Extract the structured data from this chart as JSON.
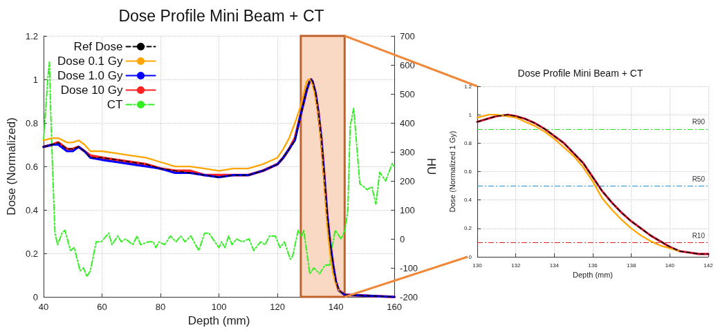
{
  "chart_data": [
    {
      "type": "line",
      "title": "Dose Profile Mini Beam + CT",
      "xlabel": "Depth (mm)",
      "ylabel": "Dose (Normalized)",
      "y2label": "HU",
      "xlim": [
        40,
        160
      ],
      "xticks": [
        40,
        60,
        80,
        100,
        120,
        140,
        160
      ],
      "ylim": [
        0,
        1.2
      ],
      "yticks": [
        0,
        0.2,
        0.4,
        0.6,
        0.8,
        1,
        1.2
      ],
      "y2lim": [
        -200,
        700
      ],
      "y2ticks": [
        -200,
        -100,
        0,
        100,
        200,
        300,
        400,
        500,
        600,
        700
      ],
      "grid": true,
      "legend": "top left",
      "marker": "none",
      "bands": [
        {
          "axis": "x",
          "from": 128,
          "to": 143,
          "color": "#f9d9c4"
        }
      ],
      "series": [
        {
          "name": "Ref Dose",
          "color": "#000000",
          "line_style": "dashed",
          "x": [
            40,
            43,
            45,
            48,
            50,
            52,
            54,
            56,
            60,
            65,
            70,
            75,
            80,
            85,
            90,
            95,
            100,
            105,
            110,
            115,
            120,
            122,
            124,
            126,
            128,
            130,
            131,
            131.5,
            132,
            133,
            134,
            135,
            136,
            137,
            138,
            139,
            140,
            141,
            142,
            143,
            160
          ],
          "values": [
            0.69,
            0.7,
            0.71,
            0.68,
            0.68,
            0.69,
            0.67,
            0.64,
            0.64,
            0.63,
            0.62,
            0.61,
            0.59,
            0.58,
            0.57,
            0.56,
            0.55,
            0.56,
            0.56,
            0.58,
            0.61,
            0.64,
            0.68,
            0.72,
            0.84,
            0.95,
            0.99,
            1.0,
            0.99,
            0.94,
            0.85,
            0.73,
            0.56,
            0.38,
            0.25,
            0.15,
            0.07,
            0.03,
            0.02,
            0.01,
            0
          ]
        },
        {
          "name": "Dose 0.1 Gy",
          "color": "#ffa500",
          "line_style": "solid",
          "x": [
            40,
            43,
            45,
            48,
            50,
            52,
            54,
            56,
            60,
            65,
            70,
            75,
            80,
            85,
            90,
            95,
            100,
            105,
            110,
            115,
            120,
            122,
            124,
            126,
            128,
            130,
            130.6,
            131,
            132,
            133,
            134,
            135,
            136,
            137,
            138,
            139,
            140,
            141,
            142
          ],
          "values": [
            0.72,
            0.73,
            0.73,
            0.71,
            0.71,
            0.72,
            0.7,
            0.67,
            0.67,
            0.66,
            0.65,
            0.64,
            0.62,
            0.6,
            0.6,
            0.59,
            0.58,
            0.59,
            0.59,
            0.61,
            0.64,
            0.68,
            0.73,
            0.8,
            0.88,
            0.99,
            1.0,
            1.0,
            0.98,
            0.92,
            0.84,
            0.71,
            0.53,
            0.33,
            0.2,
            0.11,
            0.06,
            0.03,
            0.02
          ]
        },
        {
          "name": "Dose 1.0 Gy",
          "color": "#0000ff",
          "line_style": "solid",
          "x": [
            40,
            43,
            45,
            48,
            50,
            52,
            54,
            56,
            60,
            65,
            70,
            75,
            80,
            85,
            90,
            95,
            100,
            105,
            110,
            115,
            120,
            122,
            124,
            126,
            128,
            130,
            131,
            131.5,
            132,
            133,
            134,
            135,
            136,
            137,
            138,
            139,
            140,
            141,
            142,
            143,
            160
          ],
          "values": [
            0.69,
            0.7,
            0.7,
            0.67,
            0.67,
            0.69,
            0.67,
            0.64,
            0.63,
            0.62,
            0.61,
            0.6,
            0.59,
            0.57,
            0.57,
            0.56,
            0.55,
            0.56,
            0.56,
            0.58,
            0.61,
            0.64,
            0.68,
            0.72,
            0.84,
            0.95,
            0.99,
            1.0,
            0.99,
            0.94,
            0.85,
            0.73,
            0.56,
            0.38,
            0.25,
            0.15,
            0.07,
            0.03,
            0.02,
            0.01,
            0
          ]
        },
        {
          "name": "Dose 10 Gy",
          "color": "#ff2020",
          "line_style": "solid",
          "x": [
            40,
            43,
            45,
            48,
            50,
            52,
            54,
            56,
            60,
            65,
            70,
            75,
            80,
            85,
            90,
            95,
            100,
            105,
            110,
            115,
            120,
            122,
            124,
            126,
            128,
            130,
            131,
            131.5,
            132,
            133,
            134,
            135,
            136,
            137,
            138,
            139,
            140,
            141,
            142,
            143,
            160
          ],
          "values": [
            0.69,
            0.7,
            0.71,
            0.68,
            0.68,
            0.69,
            0.67,
            0.65,
            0.64,
            0.63,
            0.62,
            0.61,
            0.59,
            0.58,
            0.58,
            0.56,
            0.56,
            0.56,
            0.56,
            0.58,
            0.61,
            0.64,
            0.68,
            0.73,
            0.84,
            0.95,
            0.99,
            1.0,
            0.99,
            0.94,
            0.85,
            0.73,
            0.56,
            0.38,
            0.25,
            0.15,
            0.07,
            0.03,
            0.02,
            0.01,
            0
          ]
        },
        {
          "name": "CT",
          "color": "#33ee22",
          "line_style": "dashdot",
          "axis": "y2",
          "x": [
            40,
            41.5,
            42,
            42.5,
            43.1,
            43.9,
            44.8,
            46.3,
            47.3,
            49.2,
            50.5,
            52.5,
            53.7,
            54.8,
            56,
            58,
            59.7,
            62.3,
            63.4,
            65.4,
            66.6,
            68.1,
            70.5,
            72,
            73.2,
            75.9,
            77.5,
            78.4,
            79.5,
            81.4,
            83.4,
            85.3,
            86.9,
            88.4,
            90.4,
            93.1,
            95.1,
            96.6,
            98.6,
            100,
            100.9,
            102.1,
            103.3,
            104.5,
            106,
            108,
            110.3,
            111.9,
            114.2,
            115.8,
            117.3,
            119.3,
            120.9,
            122.4,
            124.4,
            125.2,
            127.1,
            128.3,
            129,
            131.1,
            132.5,
            134.4,
            136.3,
            137.9,
            138.3,
            139.8,
            141.8,
            143.1,
            144.1,
            144.9,
            146.1,
            148.2,
            149.6,
            150.7,
            152.3,
            153.7,
            155,
            157,
            159.3,
            160
          ],
          "values": [
            340,
            560,
            610,
            420,
            240,
            20,
            -20,
            20,
            30,
            -40,
            -30,
            -110,
            -100,
            -130,
            -110,
            -10,
            -10,
            20,
            -20,
            10,
            -10,
            0,
            -20,
            10,
            -20,
            -10,
            -10,
            -30,
            -10,
            -20,
            10,
            -10,
            10,
            -10,
            10,
            -40,
            20,
            20,
            -10,
            -30,
            -10,
            -30,
            10,
            -20,
            0,
            -10,
            0,
            -40,
            -10,
            -20,
            10,
            10,
            -30,
            -10,
            -70,
            -60,
            30,
            10,
            30,
            -120,
            -100,
            -120,
            -90,
            -90,
            -50,
            30,
            0,
            30,
            100,
            390,
            450,
            190,
            180,
            170,
            180,
            120,
            230,
            200,
            260,
            250
          ]
        }
      ]
    },
    {
      "type": "line",
      "title": "Dose Profile Mini Beam + CT",
      "xlabel": "Depth (mm)",
      "ylabel": "Dose (Normalized 1 Gy)",
      "xlim": [
        130,
        142
      ],
      "xticks": [
        130,
        132,
        134,
        136,
        138,
        140,
        142
      ],
      "ylim": [
        0,
        1.2
      ],
      "yticks": [
        0,
        0.2,
        0.4,
        0.6,
        0.8,
        1,
        1.2
      ],
      "grid": true,
      "legend": false,
      "marker": "none",
      "ref_lines": [
        {
          "axis": "y",
          "value": 0.9,
          "label": "R90",
          "color": "#22dd22",
          "line_style": "dashdot"
        },
        {
          "axis": "y",
          "value": 0.5,
          "label": "R50",
          "color": "#1f8fc8",
          "line_style": "dashdot"
        },
        {
          "axis": "y",
          "value": 0.1,
          "label": "R10",
          "color": "#d22020",
          "line_style": "dashdot"
        }
      ],
      "series": [
        {
          "color": "#000000",
          "line_style": "dashed",
          "x": [
            130,
            130.5,
            131,
            131.6,
            132,
            132.5,
            133,
            133.5,
            134,
            134.5,
            135,
            135.5,
            136,
            136.5,
            137,
            137.5,
            138,
            138.5,
            139,
            139.5,
            140,
            140.5,
            141,
            141.5,
            142
          ],
          "values": [
            0.95,
            0.97,
            0.99,
            1.0,
            0.99,
            0.97,
            0.94,
            0.9,
            0.85,
            0.8,
            0.73,
            0.66,
            0.56,
            0.46,
            0.38,
            0.31,
            0.25,
            0.2,
            0.15,
            0.11,
            0.07,
            0.04,
            0.03,
            0.02,
            0.02
          ]
        },
        {
          "color": "#ffa500",
          "line_style": "solid",
          "x": [
            130,
            130.6,
            131,
            131.5,
            132,
            132.5,
            133,
            133.5,
            134,
            134.5,
            135,
            135.5,
            136,
            136.5,
            137,
            137.5,
            138,
            138.5,
            139,
            139.5,
            140,
            140.5
          ],
          "values": [
            0.98,
            1.0,
            1.0,
            0.99,
            0.98,
            0.95,
            0.92,
            0.88,
            0.83,
            0.77,
            0.71,
            0.63,
            0.53,
            0.41,
            0.33,
            0.26,
            0.2,
            0.15,
            0.11,
            0.08,
            0.06,
            0.04
          ]
        },
        {
          "color": "#dd1030",
          "line_style": "solid",
          "x": [
            130,
            130.5,
            131,
            131.6,
            132,
            132.5,
            133,
            133.5,
            134,
            134.5,
            135,
            135.5,
            136,
            136.5,
            137,
            137.5,
            138,
            138.5,
            139,
            139.5,
            140,
            140.5,
            141,
            141.5,
            142
          ],
          "values": [
            0.95,
            0.97,
            0.99,
            1.0,
            0.99,
            0.97,
            0.94,
            0.9,
            0.85,
            0.8,
            0.73,
            0.66,
            0.56,
            0.46,
            0.38,
            0.31,
            0.25,
            0.2,
            0.15,
            0.11,
            0.07,
            0.04,
            0.03,
            0.02,
            0.02
          ]
        }
      ]
    }
  ]
}
